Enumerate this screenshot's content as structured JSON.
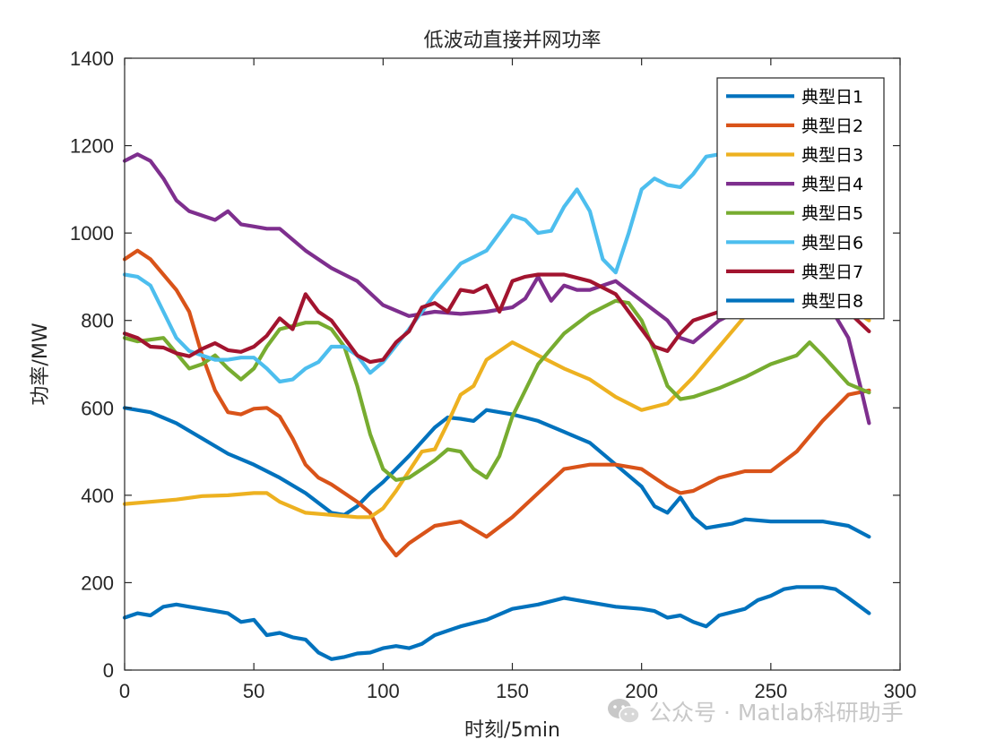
{
  "chart_data": {
    "type": "line",
    "title": "低波动直接并网功率",
    "xlabel": "时刻/5min",
    "ylabel": "功率/MW",
    "xlim": [
      0,
      300
    ],
    "ylim": [
      0,
      1400
    ],
    "xticks": [
      "0",
      "50",
      "100",
      "150",
      "200",
      "250",
      "300"
    ],
    "yticks": [
      "0",
      "200",
      "400",
      "600",
      "800",
      "1000",
      "1200",
      "1400"
    ],
    "grid": false,
    "legend_position": "top-right",
    "series": [
      {
        "name": "典型日1",
        "color": "#0072BD",
        "x": [
          0,
          10,
          20,
          30,
          40,
          50,
          60,
          70,
          80,
          85,
          90,
          95,
          100,
          110,
          120,
          125,
          130,
          135,
          140,
          150,
          160,
          170,
          180,
          190,
          200,
          205,
          210,
          215,
          220,
          225,
          230,
          235,
          240,
          250,
          260,
          270,
          280,
          288
        ],
        "y": [
          600,
          590,
          565,
          530,
          495,
          470,
          440,
          405,
          360,
          355,
          375,
          405,
          430,
          490,
          555,
          578,
          575,
          570,
          595,
          585,
          570,
          545,
          520,
          470,
          420,
          375,
          360,
          395,
          350,
          325,
          330,
          335,
          345,
          340,
          340,
          340,
          330,
          305
        ]
      },
      {
        "name": "典型日2",
        "color": "#D95319",
        "x": [
          0,
          5,
          10,
          20,
          25,
          30,
          35,
          40,
          45,
          50,
          55,
          60,
          65,
          70,
          75,
          80,
          90,
          95,
          100,
          105,
          110,
          120,
          130,
          140,
          150,
          160,
          170,
          180,
          190,
          200,
          210,
          215,
          220,
          230,
          240,
          250,
          260,
          270,
          280,
          288
        ],
        "y": [
          940,
          960,
          940,
          870,
          820,
          720,
          640,
          590,
          585,
          598,
          600,
          580,
          530,
          470,
          440,
          425,
          385,
          360,
          300,
          262,
          290,
          330,
          340,
          305,
          350,
          405,
          460,
          470,
          470,
          460,
          420,
          405,
          410,
          440,
          455,
          455,
          500,
          570,
          630,
          640
        ]
      },
      {
        "name": "典型日3",
        "color": "#EDB120",
        "x": [
          0,
          10,
          20,
          30,
          40,
          50,
          55,
          60,
          70,
          80,
          90,
          95,
          100,
          105,
          110,
          115,
          120,
          125,
          130,
          135,
          140,
          145,
          150,
          160,
          170,
          180,
          190,
          200,
          210,
          220,
          230,
          240,
          250,
          260,
          270,
          280,
          288
        ],
        "y": [
          380,
          385,
          390,
          398,
          400,
          405,
          405,
          385,
          360,
          355,
          350,
          350,
          370,
          410,
          455,
          500,
          505,
          565,
          630,
          650,
          710,
          730,
          750,
          720,
          690,
          665,
          625,
          595,
          610,
          670,
          740,
          810,
          840,
          845,
          830,
          830,
          800
        ]
      },
      {
        "name": "典型日4",
        "color": "#7E2F8E",
        "x": [
          0,
          5,
          10,
          15,
          20,
          25,
          30,
          35,
          40,
          45,
          50,
          55,
          60,
          70,
          80,
          90,
          100,
          110,
          120,
          130,
          140,
          150,
          155,
          160,
          165,
          170,
          175,
          180,
          190,
          200,
          210,
          215,
          220,
          230,
          240,
          250,
          260,
          270,
          280,
          285,
          288
        ],
        "y": [
          1165,
          1180,
          1165,
          1125,
          1075,
          1050,
          1040,
          1030,
          1050,
          1020,
          1015,
          1010,
          1010,
          960,
          920,
          890,
          835,
          810,
          820,
          815,
          820,
          830,
          850,
          900,
          845,
          880,
          870,
          870,
          890,
          845,
          800,
          760,
          750,
          800,
          830,
          810,
          850,
          860,
          760,
          640,
          565
        ]
      },
      {
        "name": "典型日5",
        "color": "#77AC30",
        "x": [
          0,
          5,
          15,
          20,
          25,
          30,
          35,
          40,
          45,
          50,
          55,
          60,
          70,
          75,
          80,
          85,
          90,
          95,
          100,
          105,
          110,
          115,
          120,
          125,
          130,
          135,
          140,
          145,
          150,
          160,
          170,
          180,
          190,
          195,
          200,
          205,
          210,
          215,
          220,
          230,
          240,
          250,
          260,
          265,
          270,
          280,
          288
        ],
        "y": [
          760,
          752,
          760,
          725,
          690,
          700,
          720,
          690,
          665,
          690,
          740,
          780,
          795,
          795,
          780,
          740,
          650,
          540,
          460,
          435,
          440,
          460,
          480,
          505,
          500,
          460,
          440,
          490,
          580,
          700,
          770,
          815,
          845,
          840,
          800,
          730,
          650,
          620,
          625,
          645,
          670,
          700,
          720,
          750,
          720,
          655,
          635
        ]
      },
      {
        "name": "典型日6",
        "color": "#4DBEEE",
        "x": [
          0,
          5,
          10,
          15,
          20,
          25,
          30,
          35,
          40,
          45,
          50,
          55,
          60,
          65,
          70,
          75,
          80,
          85,
          90,
          95,
          100,
          110,
          120,
          130,
          140,
          150,
          155,
          160,
          165,
          170,
          175,
          180,
          185,
          190,
          195,
          200,
          205,
          210,
          215,
          220,
          225,
          230,
          240,
          250,
          255
        ],
        "y": [
          905,
          900,
          880,
          820,
          760,
          730,
          720,
          710,
          710,
          715,
          715,
          690,
          660,
          665,
          690,
          705,
          740,
          740,
          720,
          680,
          705,
          780,
          860,
          930,
          960,
          1040,
          1030,
          1000,
          1005,
          1060,
          1100,
          1050,
          940,
          910,
          1000,
          1100,
          1125,
          1110,
          1105,
          1135,
          1175,
          1180,
          1185,
          1180,
          1175
        ]
      },
      {
        "name": "典型日7",
        "color": "#A2142F",
        "x": [
          0,
          5,
          10,
          15,
          20,
          25,
          30,
          35,
          40,
          45,
          50,
          55,
          60,
          65,
          70,
          75,
          80,
          85,
          90,
          95,
          100,
          105,
          110,
          115,
          120,
          125,
          130,
          135,
          140,
          145,
          150,
          155,
          160,
          170,
          180,
          190,
          200,
          205,
          210,
          215,
          220,
          230,
          240,
          250,
          260,
          270,
          280,
          288
        ],
        "y": [
          770,
          760,
          740,
          738,
          725,
          718,
          735,
          748,
          732,
          728,
          740,
          765,
          805,
          780,
          860,
          820,
          800,
          760,
          720,
          705,
          710,
          750,
          775,
          830,
          840,
          820,
          870,
          865,
          880,
          820,
          890,
          900,
          905,
          905,
          890,
          860,
          780,
          740,
          730,
          770,
          800,
          820,
          830,
          830,
          830,
          830,
          820,
          775
        ]
      },
      {
        "name": "典型日8",
        "color": "#0072BD",
        "x": [
          0,
          5,
          10,
          15,
          20,
          25,
          30,
          35,
          40,
          45,
          50,
          55,
          60,
          65,
          70,
          75,
          80,
          85,
          90,
          95,
          100,
          105,
          110,
          115,
          120,
          130,
          140,
          150,
          160,
          170,
          180,
          190,
          200,
          205,
          210,
          215,
          220,
          225,
          230,
          240,
          245,
          250,
          255,
          260,
          270,
          275,
          280,
          288
        ],
        "y": [
          120,
          130,
          125,
          145,
          150,
          145,
          140,
          135,
          130,
          110,
          115,
          80,
          85,
          75,
          70,
          40,
          25,
          30,
          38,
          40,
          50,
          55,
          50,
          60,
          80,
          100,
          115,
          140,
          150,
          165,
          155,
          145,
          140,
          135,
          120,
          125,
          110,
          100,
          125,
          140,
          160,
          170,
          185,
          190,
          190,
          185,
          165,
          130
        ]
      }
    ]
  },
  "watermark": {
    "text": "公众号 · Matlab科研助手"
  }
}
